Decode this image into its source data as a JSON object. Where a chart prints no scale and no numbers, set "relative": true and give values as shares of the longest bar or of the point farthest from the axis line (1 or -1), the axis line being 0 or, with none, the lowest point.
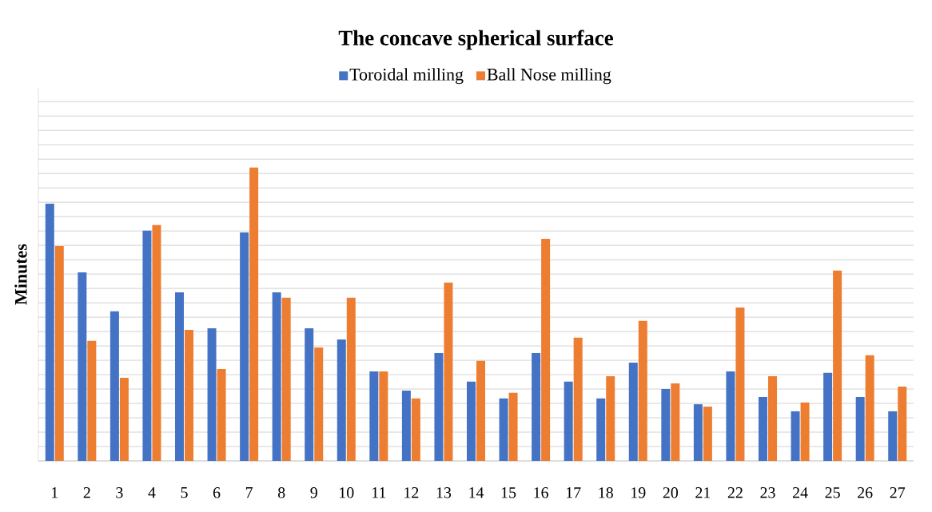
{
  "chart_data": {
    "type": "bar",
    "title": "The concave spherical surface",
    "ylabel": "Minutes",
    "relative": true,
    "grid": "y",
    "legend": "top",
    "categories": [
      "1",
      "2",
      "3",
      "4",
      "5",
      "6",
      "7",
      "8",
      "9",
      "10",
      "11",
      "12",
      "13",
      "14",
      "15",
      "16",
      "17",
      "18",
      "19",
      "20",
      "21",
      "22",
      "23",
      "24",
      "25",
      "26",
      "27"
    ],
    "series": [
      {
        "name": "Toroidal milling",
        "color": "#4472c4",
        "values": [
          0.877,
          0.643,
          0.51,
          0.785,
          0.575,
          0.452,
          0.779,
          0.575,
          0.452,
          0.414,
          0.305,
          0.24,
          0.368,
          0.27,
          0.213,
          0.368,
          0.27,
          0.213,
          0.335,
          0.245,
          0.193,
          0.305,
          0.218,
          0.169,
          0.3,
          0.218,
          0.169
        ]
      },
      {
        "name": "Ball Nose milling",
        "color": "#ed7d31",
        "values": [
          0.733,
          0.409,
          0.283,
          0.804,
          0.447,
          0.313,
          1,
          0.556,
          0.387,
          0.556,
          0.305,
          0.213,
          0.608,
          0.341,
          0.232,
          0.757,
          0.42,
          0.289,
          0.477,
          0.264,
          0.185,
          0.523,
          0.289,
          0.199,
          0.649,
          0.36,
          0.253
        ]
      }
    ]
  }
}
